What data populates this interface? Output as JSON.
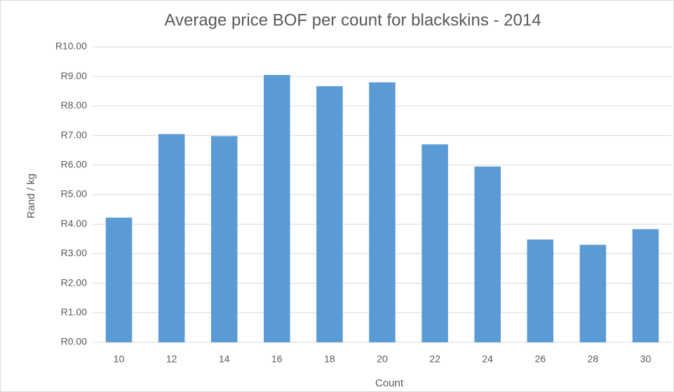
{
  "chart_data": {
    "type": "bar",
    "title": "Average price BOF per count for blackskins - 2014",
    "x_label": "Count",
    "y_label": "Rand / kg",
    "categories": [
      "10",
      "12",
      "14",
      "16",
      "18",
      "20",
      "22",
      "24",
      "26",
      "28",
      "30"
    ],
    "values": [
      4.22,
      7.05,
      6.98,
      9.05,
      8.67,
      8.8,
      6.7,
      5.95,
      3.48,
      3.3,
      3.83
    ],
    "color": "#5b9bd5",
    "ylim": [
      0,
      10
    ],
    "yticks": [
      {
        "value": 0,
        "label": "R0.00"
      },
      {
        "value": 1,
        "label": "R1.00"
      },
      {
        "value": 2,
        "label": "R2.00"
      },
      {
        "value": 3,
        "label": "R3.00"
      },
      {
        "value": 4,
        "label": "R4.00"
      },
      {
        "value": 5,
        "label": "R5.00"
      },
      {
        "value": 6,
        "label": "R6.00"
      },
      {
        "value": 7,
        "label": "R7.00"
      },
      {
        "value": 8,
        "label": "R8.00"
      },
      {
        "value": 9,
        "label": "R9.00"
      },
      {
        "value": 10,
        "label": "R10.00"
      }
    ],
    "grid": true
  }
}
